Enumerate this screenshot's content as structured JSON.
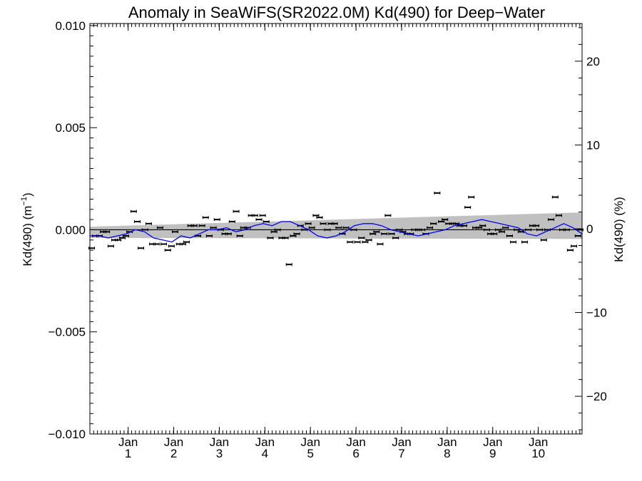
{
  "chart_data": {
    "type": "scatter",
    "title": "Anomaly in SeaWiFS(SR2022.0M) Kd(490) for Deep−Water",
    "ylabel_left": "Kd(490) (m",
    "ylabel_left_sup": "−1",
    "ylabel_left_close": ")",
    "ylabel_right": "Kd(490) (%)",
    "xlim": [
      0,
      10.8
    ],
    "ylim": [
      -0.01,
      0.0101
    ],
    "ylim_right": [
      -24.5,
      24.5
    ],
    "grid": false,
    "y_ticks": [
      {
        "v": 0.01,
        "label": "0.010"
      },
      {
        "v": 0.005,
        "label": "0.005"
      },
      {
        "v": 0.0,
        "label": "0.000"
      },
      {
        "v": -0.005,
        "label": "−0.005"
      },
      {
        "v": -0.01,
        "label": "−0.010"
      }
    ],
    "y_right_ticks": [
      {
        "v": 20,
        "label": "20"
      },
      {
        "v": 10,
        "label": "10"
      },
      {
        "v": 0,
        "label": "0"
      },
      {
        "v": -10,
        "label": "−10"
      },
      {
        "v": -20,
        "label": "−20"
      }
    ],
    "x_ticks": [
      {
        "v": 0.84,
        "month": "Jan",
        "year": "1"
      },
      {
        "v": 1.84,
        "month": "Jan",
        "year": "2"
      },
      {
        "v": 2.84,
        "month": "Jan",
        "year": "3"
      },
      {
        "v": 3.84,
        "month": "Jan",
        "year": "4"
      },
      {
        "v": 4.84,
        "month": "Jan",
        "year": "5"
      },
      {
        "v": 5.84,
        "month": "Jan",
        "year": "6"
      },
      {
        "v": 6.84,
        "month": "Jan",
        "year": "7"
      },
      {
        "v": 7.84,
        "month": "Jan",
        "year": "8"
      },
      {
        "v": 8.84,
        "month": "Jan",
        "year": "9"
      },
      {
        "v": 9.84,
        "month": "Jan",
        "year": "10"
      }
    ],
    "uncertainty_band": {
      "x": [
        0,
        10.8
      ],
      "upper": [
        0.00015,
        0.00085
      ],
      "lower": [
        -0.0004,
        -0.00045
      ],
      "color": "#c0c0c0"
    },
    "zero_line": 0,
    "series": [
      {
        "kind": "monthly_points",
        "color": "#000000",
        "x": [
          0.04,
          0.12,
          0.21,
          0.29,
          0.37,
          0.46,
          0.54,
          0.62,
          0.71,
          0.79,
          0.87,
          0.96,
          1.04,
          1.12,
          1.21,
          1.29,
          1.37,
          1.46,
          1.54,
          1.62,
          1.71,
          1.79,
          1.87,
          1.96,
          2.04,
          2.12,
          2.21,
          2.29,
          2.37,
          2.46,
          2.54,
          2.62,
          2.71,
          2.79,
          2.87,
          2.96,
          3.04,
          3.12,
          3.21,
          3.29,
          3.37,
          3.46,
          3.54,
          3.62,
          3.71,
          3.79,
          3.87,
          3.96,
          4.04,
          4.12,
          4.21,
          4.29,
          4.37,
          4.46,
          4.54,
          4.62,
          4.71,
          4.79,
          4.87,
          4.96,
          5.04,
          5.12,
          5.21,
          5.29,
          5.37,
          5.46,
          5.54,
          5.62,
          5.71,
          5.79,
          5.87,
          5.96,
          6.04,
          6.12,
          6.21,
          6.29,
          6.37,
          6.46,
          6.54,
          6.62,
          6.71,
          6.79,
          6.87,
          6.96,
          7.04,
          7.12,
          7.21,
          7.29,
          7.37,
          7.46,
          7.54,
          7.62,
          7.71,
          7.79,
          7.87,
          7.96,
          8.04,
          8.12,
          8.21,
          8.29,
          8.37,
          8.46,
          8.54,
          8.62,
          8.71,
          8.79,
          8.87,
          8.96,
          9.04,
          9.12,
          9.21,
          9.29,
          9.37,
          9.46,
          9.54,
          9.62,
          9.71,
          9.79,
          9.87,
          9.96,
          10.04,
          10.12,
          10.21,
          10.29,
          10.37,
          10.46,
          10.54,
          10.62,
          10.71,
          10.76
        ],
        "y": [
          -0.0009,
          -0.0003,
          -0.0003,
          -0.0001,
          -0.0001,
          -0.0008,
          -0.0005,
          -0.0005,
          -0.0004,
          -0.0003,
          -0.0001,
          0.0009,
          0.0004,
          -0.0009,
          0.0,
          0.0003,
          -0.0007,
          -0.0007,
          0.0001,
          -0.0007,
          -0.001,
          -0.0008,
          -0.0001,
          -0.0007,
          -0.0007,
          -0.0006,
          0.0002,
          0.0002,
          -0.0003,
          0.0002,
          0.0006,
          -0.0003,
          0.0001,
          0.0005,
          0.0,
          -0.0002,
          -0.0002,
          0.0004,
          0.0009,
          -0.0003,
          0.0001,
          0.0001,
          0.0007,
          0.0007,
          0.0005,
          0.0007,
          0.0004,
          -0.0004,
          -0.0001,
          0.0,
          -0.0004,
          -0.0004,
          -0.0017,
          -0.0003,
          -0.0002,
          0.0002,
          0.0,
          0.0003,
          0.0001,
          0.0007,
          0.0006,
          0.0003,
          0.0,
          0.0003,
          0.0003,
          0.0001,
          -0.0002,
          0.0001,
          -0.0006,
          0.0,
          -0.0006,
          -0.0004,
          -0.0006,
          -0.0005,
          -0.0002,
          -0.0001,
          -0.0007,
          -0.0002,
          0.0007,
          -0.0002,
          -0.0004,
          0.0,
          -0.0001,
          -0.0002,
          -0.0002,
          0.0,
          0.0,
          0.0,
          -0.0002,
          0.0001,
          0.0003,
          0.0018,
          0.0004,
          0.0005,
          0.0003,
          0.0003,
          0.0003,
          0.0002,
          0.0002,
          0.0011,
          0.0016,
          0.0001,
          0.0001,
          0.0002,
          0.0,
          -0.0002,
          -0.0002,
          0.0,
          -0.0001,
          0.0001,
          -0.0003,
          -0.0006,
          0.0,
          -0.0001,
          -0.0006,
          0.0,
          0.0002,
          0.0002,
          0.0,
          -0.0005,
          0.0,
          0.0005,
          0.0016,
          0.0007,
          0.0,
          0.0,
          -0.001,
          -0.0008,
          -0.0003,
          0.0
        ]
      },
      {
        "kind": "running_mean",
        "color": "#0000ff",
        "x": [
          0.0,
          0.2,
          0.4,
          0.6,
          0.8,
          1.0,
          1.2,
          1.4,
          1.6,
          1.8,
          2.0,
          2.2,
          2.4,
          2.6,
          2.8,
          3.0,
          3.2,
          3.4,
          3.6,
          3.8,
          4.0,
          4.2,
          4.4,
          4.6,
          4.8,
          5.0,
          5.2,
          5.4,
          5.6,
          5.8,
          6.0,
          6.2,
          6.4,
          6.6,
          6.8,
          7.0,
          7.2,
          7.4,
          7.6,
          7.8,
          8.0,
          8.2,
          8.4,
          8.6,
          8.8,
          9.0,
          9.2,
          9.4,
          9.6,
          9.8,
          10.0,
          10.2,
          10.4,
          10.6,
          10.8
        ],
        "y": [
          -0.0003,
          -0.0003,
          -0.0004,
          -0.0003,
          -0.0002,
          0.0,
          -0.0001,
          -0.0004,
          -0.0005,
          -0.0006,
          -0.0003,
          -0.0004,
          -0.0002,
          0.0,
          0.0,
          0.0001,
          -0.0001,
          0.0,
          0.0002,
          0.0003,
          0.0002,
          0.0004,
          0.0004,
          0.0002,
          0.0,
          -0.0003,
          -0.0004,
          -0.0003,
          -0.0001,
          0.0002,
          0.0003,
          0.0003,
          0.0002,
          0.0,
          -0.0001,
          -0.0002,
          -0.0003,
          -0.0002,
          -0.0001,
          0.0,
          0.0002,
          0.0003,
          0.0004,
          0.0005,
          0.0004,
          0.0003,
          0.0002,
          0.0001,
          -0.0002,
          -0.0003,
          -0.0001,
          0.0001,
          0.0003,
          0.0001,
          -0.0002
        ]
      }
    ]
  }
}
